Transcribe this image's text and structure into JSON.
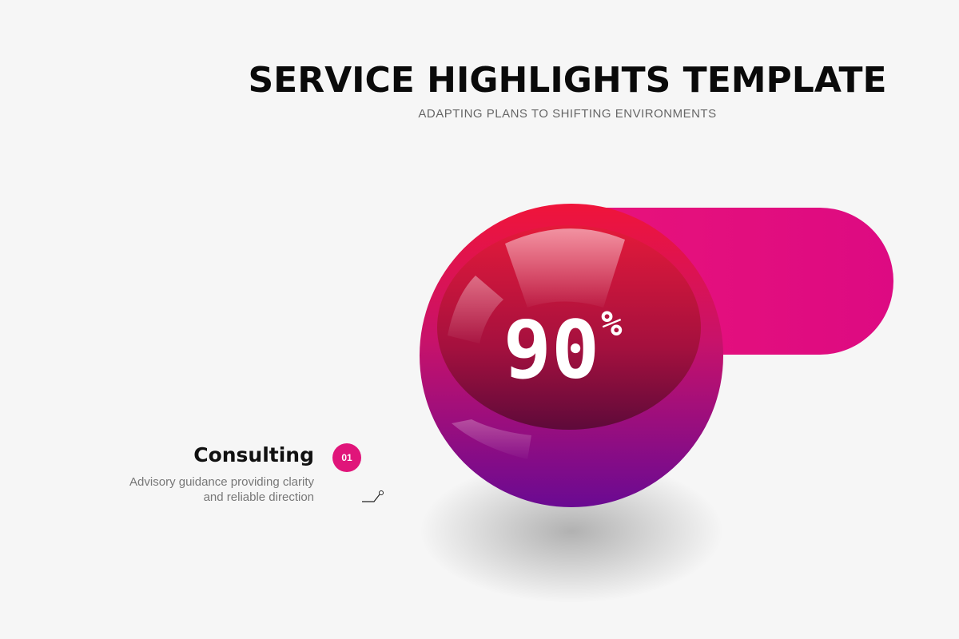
{
  "header": {
    "title": "SERVICE HIGHLIGHTS TEMPLATE",
    "subtitle": "ADAPTING PLANS TO SHIFTING ENVIRONMENTS"
  },
  "highlight": {
    "value": "90",
    "unit": "%"
  },
  "item": {
    "number": "01",
    "heading": "Consulting",
    "description": [
      "Advisory guidance providing clarity",
      "and reliable direction"
    ]
  }
}
